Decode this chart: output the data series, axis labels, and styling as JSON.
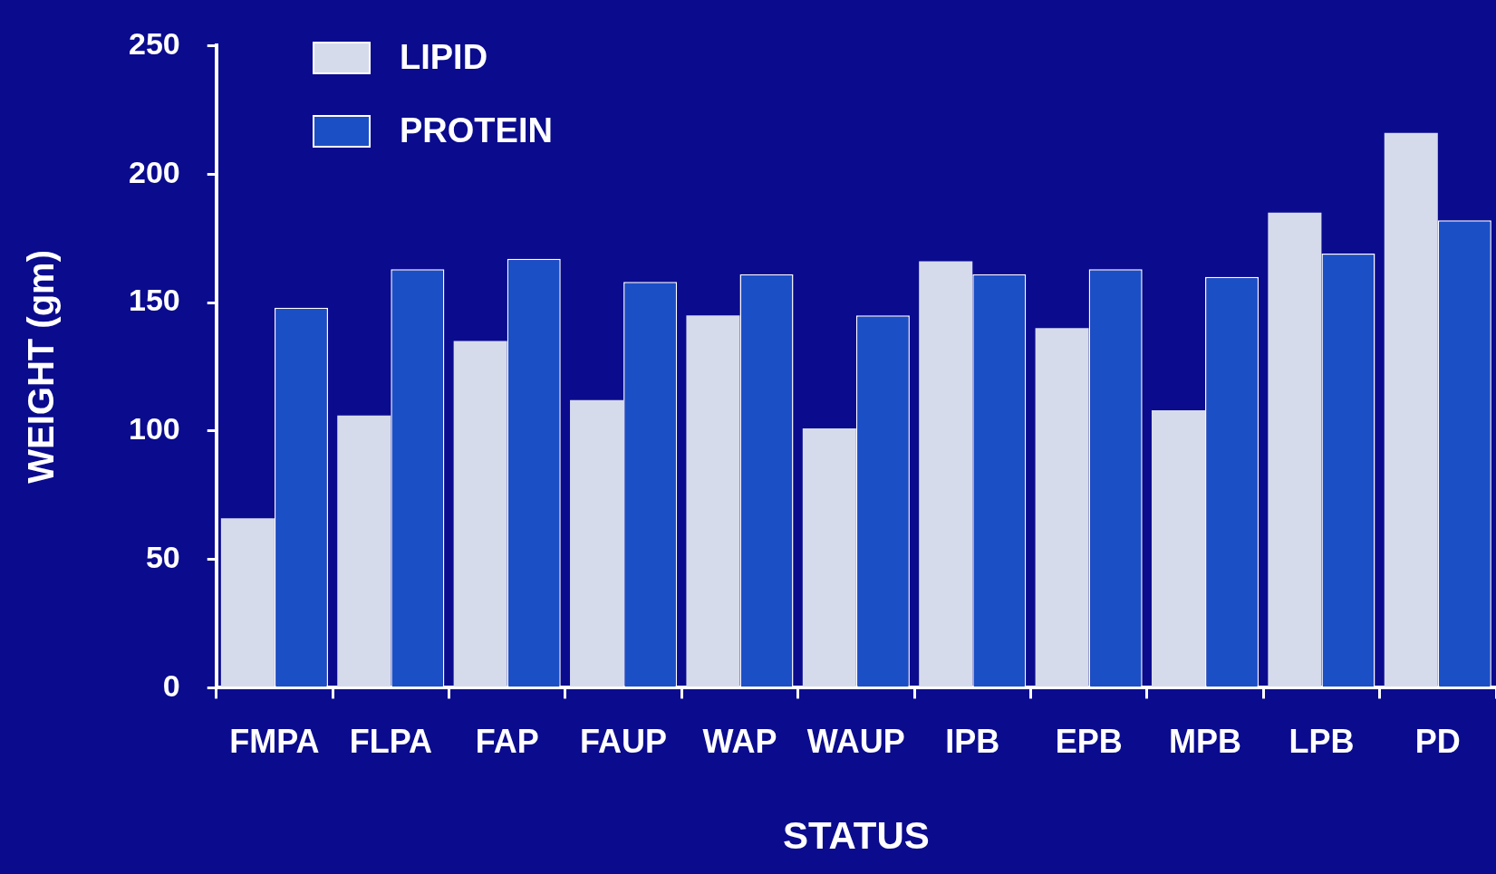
{
  "chart_data": {
    "type": "bar",
    "xlabel": "STATUS",
    "ylabel": "WEIGHT (gm)",
    "categories": [
      "FMPA",
      "FLPA",
      "FAP",
      "FAUP",
      "WAP",
      "WAUP",
      "IPB",
      "EPB",
      "MPB",
      "LPB",
      "PD"
    ],
    "series": [
      {
        "name": "LIPID",
        "color": "#d6dbec",
        "values": [
          66,
          106,
          135,
          112,
          145,
          101,
          166,
          140,
          108,
          185,
          216
        ]
      },
      {
        "name": "PROTEIN",
        "color": "#1b4fc6",
        "values": [
          148,
          163,
          167,
          158,
          161,
          145,
          161,
          163,
          160,
          169,
          182
        ]
      }
    ],
    "ylim": [
      0,
      250
    ],
    "yticks": [
      0,
      50,
      100,
      150,
      200,
      250
    ],
    "grid": false,
    "legend": "top left"
  }
}
